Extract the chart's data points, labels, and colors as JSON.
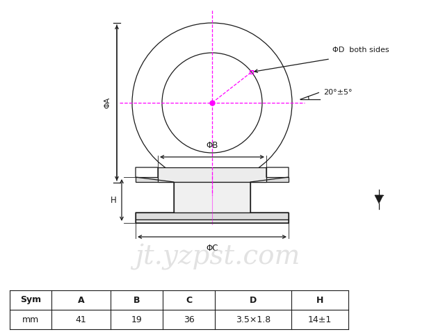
{
  "bg_color": "#ffffff",
  "line_color": "#1a1a1a",
  "magenta_color": "#ff00ff",
  "watermark_color": "#d0d0d0",
  "table_row1": [
    "Sym",
    "A",
    "B",
    "C",
    "D",
    "H"
  ],
  "table_row2": [
    "mm",
    "41",
    "19",
    "36",
    "3.5×1.8",
    "14±1"
  ],
  "phi_d_label": "ΦD  both sides",
  "phi_a_label": "ΦA",
  "phi_b_label": "ΦB",
  "phi_c_label": "ΦC",
  "angle_label": "20°±5°",
  "watermark": "jt.yzpst.com"
}
